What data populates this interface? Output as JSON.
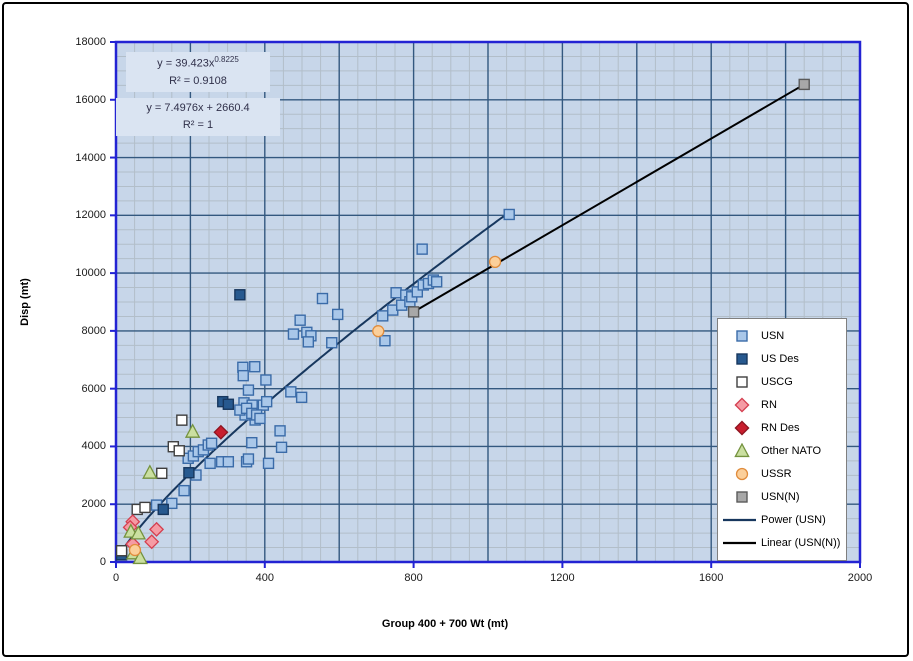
{
  "axes": {
    "x": {
      "title": "Group 400 + 700 Wt (mt)",
      "min": 0,
      "max": 2000,
      "ticks": [
        0,
        400,
        800,
        1200,
        1600,
        2000
      ],
      "major_grid_step": 200,
      "minor_grid_step": 50
    },
    "y": {
      "title": "Disp (mt)",
      "min": 0,
      "max": 18000,
      "ticks": [
        0,
        2000,
        4000,
        6000,
        8000,
        10000,
        12000,
        14000,
        16000,
        18000
      ],
      "major_grid_step": 2000,
      "minor_grid_step": 500
    }
  },
  "equations": {
    "power": {
      "prefix": "y = 39.423x",
      "exponent": "0.8225",
      "r2": "R² = 0.9108"
    },
    "linear": {
      "text": "y = 7.4976x + 2660.4",
      "r2": "R² = 1"
    }
  },
  "colors": {
    "plot_background": "#c7d6e9",
    "minor_grid": "#b2bec9",
    "major_grid": "#33587f",
    "axis_line": "#2323d3",
    "equation_panel": "#dae4f2",
    "legend_border": "#7f7f7f",
    "frame_border": "#000000"
  },
  "chart_data": {
    "type": "scatter",
    "title": "",
    "xlabel": "Group 400 + 700 Wt (mt)",
    "ylabel": "Disp (mt)",
    "xlim": [
      0,
      2000
    ],
    "ylim": [
      0,
      18000
    ],
    "grid": true,
    "legend_position": "right-bottom",
    "series": [
      {
        "name": "USN",
        "marker": "square",
        "fill": "#a9c7e9",
        "stroke": "#3a6ba8",
        "points": [
          [
            109,
            1970
          ],
          [
            150,
            2030
          ],
          [
            183,
            2470
          ],
          [
            215,
            3010
          ],
          [
            194,
            3590
          ],
          [
            208,
            3670
          ],
          [
            221,
            3820
          ],
          [
            235,
            3880
          ],
          [
            248,
            4050
          ],
          [
            257,
            4110
          ],
          [
            253,
            3415
          ],
          [
            284,
            3470
          ],
          [
            302,
            3470
          ],
          [
            351,
            3470
          ],
          [
            410,
            3415
          ],
          [
            356,
            3565
          ],
          [
            365,
            4130
          ],
          [
            445,
            3970
          ],
          [
            441,
            4540
          ],
          [
            344,
            5510
          ],
          [
            366,
            5430
          ],
          [
            374,
            4915
          ],
          [
            396,
            5430
          ],
          [
            405,
            5550
          ],
          [
            347,
            5090
          ],
          [
            333,
            5260
          ],
          [
            351,
            5320
          ],
          [
            365,
            5145
          ],
          [
            378,
            5090
          ],
          [
            387,
            4970
          ],
          [
            341,
            6740
          ],
          [
            373,
            6760
          ],
          [
            342,
            6450
          ],
          [
            403,
            6300
          ],
          [
            356,
            5950
          ],
          [
            470,
            5890
          ],
          [
            499,
            5700
          ],
          [
            477,
            7890
          ],
          [
            513,
            7950
          ],
          [
            524,
            7830
          ],
          [
            517,
            7620
          ],
          [
            580,
            7590
          ],
          [
            596,
            8570
          ],
          [
            555,
            9120
          ],
          [
            495,
            8370
          ],
          [
            723,
            7660
          ],
          [
            717,
            8520
          ],
          [
            744,
            8720
          ],
          [
            753,
            9320
          ],
          [
            768,
            8890
          ],
          [
            779,
            9240
          ],
          [
            790,
            9010
          ],
          [
            795,
            9180
          ],
          [
            810,
            9350
          ],
          [
            826,
            9590
          ],
          [
            840,
            9640
          ],
          [
            853,
            9760
          ],
          [
            862,
            9700
          ],
          [
            823,
            10830
          ],
          [
            1057,
            12030
          ]
        ]
      },
      {
        "name": "US Des",
        "marker": "square",
        "fill": "#27598f",
        "stroke": "#17375e",
        "points": [
          [
            333,
            9250
          ],
          [
            287,
            5550
          ],
          [
            302,
            5460
          ],
          [
            196,
            3090
          ],
          [
            127,
            1820
          ],
          [
            15,
            250
          ]
        ]
      },
      {
        "name": "USCG",
        "marker": "square",
        "fill": "#ffffff",
        "stroke": "#3f3f3f",
        "points": [
          [
            123,
            3070
          ],
          [
            57,
            1820
          ],
          [
            78,
            1890
          ],
          [
            177,
            4910
          ],
          [
            154,
            3990
          ],
          [
            170,
            3850
          ],
          [
            15,
            390
          ]
        ]
      },
      {
        "name": "RN",
        "marker": "diamond",
        "fill": "#f59ba4",
        "stroke": "#d43f50",
        "points": [
          [
            45,
            1395
          ],
          [
            38,
            1200
          ],
          [
            109,
            1130
          ],
          [
            96,
            700
          ],
          [
            45,
            620
          ]
        ]
      },
      {
        "name": "RN Des",
        "marker": "diamond",
        "fill": "#c81e2e",
        "stroke": "#8d1420",
        "points": [
          [
            282,
            4490
          ]
        ]
      },
      {
        "name": "Other NATO",
        "marker": "triangle",
        "fill": "#cadfa0",
        "stroke": "#74923e",
        "points": [
          [
            91,
            3090
          ],
          [
            206,
            4510
          ],
          [
            40,
            1050
          ],
          [
            60,
            990
          ],
          [
            47,
            300
          ],
          [
            65,
            140
          ]
        ]
      },
      {
        "name": "USSR",
        "marker": "circle",
        "fill": "#fbcf9a",
        "stroke": "#e08c3c",
        "points": [
          [
            1019,
            10390
          ],
          [
            705,
            7990
          ],
          [
            51,
            415
          ]
        ]
      },
      {
        "name": "USN(N)",
        "marker": "square",
        "fill": "#a8a8a8",
        "stroke": "#5a5a5a",
        "points": [
          [
            800,
            8658
          ],
          [
            1850,
            16532
          ]
        ]
      },
      {
        "name": "Power (USN)",
        "line": "power_fit",
        "color": "#17375e",
        "a": 39.423,
        "b": 0.8225,
        "r2": 0.9108,
        "x_range": [
          8,
          1057
        ]
      },
      {
        "name": "Linear (USN(N))",
        "line": "linear_fit",
        "color": "#000000",
        "slope": 7.4976,
        "intercept": 2660.4,
        "r2": 1,
        "x_range": [
          800,
          1850
        ]
      }
    ]
  }
}
